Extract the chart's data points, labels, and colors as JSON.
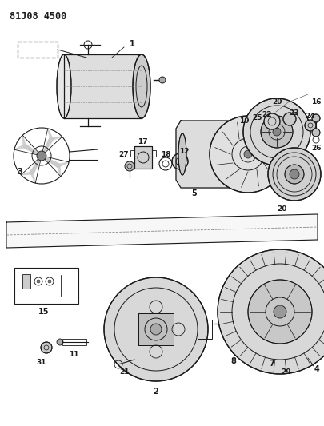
{
  "title": "81J08 4500",
  "bg_color": "#ffffff",
  "line_color": "#1a1a1a",
  "title_fontsize": 8.5,
  "fig_width": 4.05,
  "fig_height": 5.33,
  "dpi": 100
}
